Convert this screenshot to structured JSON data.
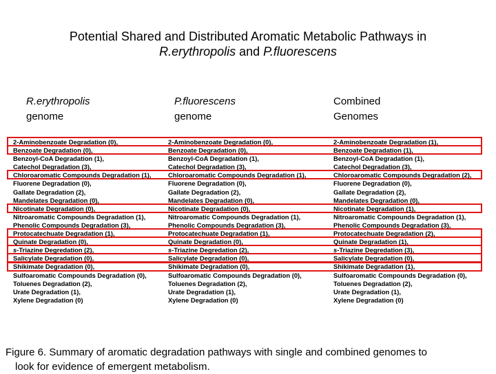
{
  "title": {
    "line1": "Potential Shared and Distributed Aromatic Metabolic Pathways in",
    "species1": "R.erythropolis",
    "and": " and ",
    "species2": "P.fluorescens"
  },
  "columns": [
    {
      "header_italic": "R.erythropolis",
      "header_rest": "genome",
      "items": [
        "2-Aminobenzoate Degradation (0),",
        "Benzoate Degradation (0),",
        "Benzoyl-CoA Degradation (1),",
        "Catechol Degradation (3),",
        "Chloroaromatic Compounds Degradation (1),",
        "Fluorene Degradation (0),",
        "Gallate Degradation (2),",
        "Mandelates Degradation (0),",
        "Nicotinate Degradation (0),",
        "Nitroaromatic Compounds Degradation (1),",
        "Phenolic Compounds Degradation (3),",
        "Protocatechuate Degradation (1),",
        "Quinate Degradation (0),",
        "s-Triazine Degredation (2),",
        "Salicylate Degradation (0),",
        "Shikimate Degradation (0),",
        "Sulfoaromatic Compounds Degradation (0),",
        "Toluenes Degradation (2),",
        "Urate Degradation (1),",
        "Xylene Degradation (0)"
      ]
    },
    {
      "header_italic": "P.fluorescens",
      "header_rest": "genome",
      "items": [
        "2-Aminobenzoate Degradation (0),",
        "Benzoate Degradation (0),",
        "Benzoyl-CoA Degradation (1),",
        "Catechol Degradation (3),",
        "Chloroaromatic Compounds Degradation (1),",
        "Fluorene Degradation (0),",
        "Gallate Degradation (2),",
        "Mandelates Degradation (0),",
        "Nicotinate Degradation (0),",
        "Nitroaromatic Compounds Degradation (1),",
        "Phenolic Compounds Degradation (3),",
        "Protocatechuate Degradation (1),",
        "Quinate Degradation (0),",
        "s-Triazine Degredation (2),",
        "Salicylate Degradation (0),",
        "Shikimate Degradation (0),",
        "Sulfoaromatic Compounds Degradation (0),",
        "Toluenes Degradation (2),",
        "Urate Degradation (1),",
        "Xylene Degradation (0)"
      ]
    },
    {
      "header_italic": "",
      "header_line1": "Combined",
      "header_rest": "Genomes",
      "items": [
        "2-Aminobenzoate Degradation (1),",
        "Benzoate Degradation (1),",
        "Benzoyl-CoA Degradation (1),",
        "Catechol Degradation (3),",
        "Chloroaromatic Compounds Degradation (2),",
        "Fluorene Degradation (0),",
        "Gallate Degradation (2),",
        "Mandelates Degradation (0),",
        "Nicotinate Degradation (1),",
        "Nitroaromatic Compounds Degradation (1),",
        "Phenolic Compounds Degradation (3),",
        "Protocatechuate Degradation (2),",
        "Quinate Degradation (1),",
        "s-Triazine Degredation (3),",
        "Salicylate Degradation (0),",
        "Shikimate Degradation (1),",
        "Sulfoaromatic Compounds Degradation (0),",
        "Toluenes Degradation (2),",
        "Urate Degradation (1),",
        "Xylene Degradation (0)"
      ]
    }
  ],
  "highlighted_rows": [
    0,
    1,
    4,
    8,
    11,
    12,
    13,
    14,
    15
  ],
  "highlight_color": "#e01818",
  "caption": {
    "line1": "Figure 6. Summary of aromatic degradation pathways with single and combined genomes to",
    "line2": "look for evidence of emergent metabolism."
  }
}
